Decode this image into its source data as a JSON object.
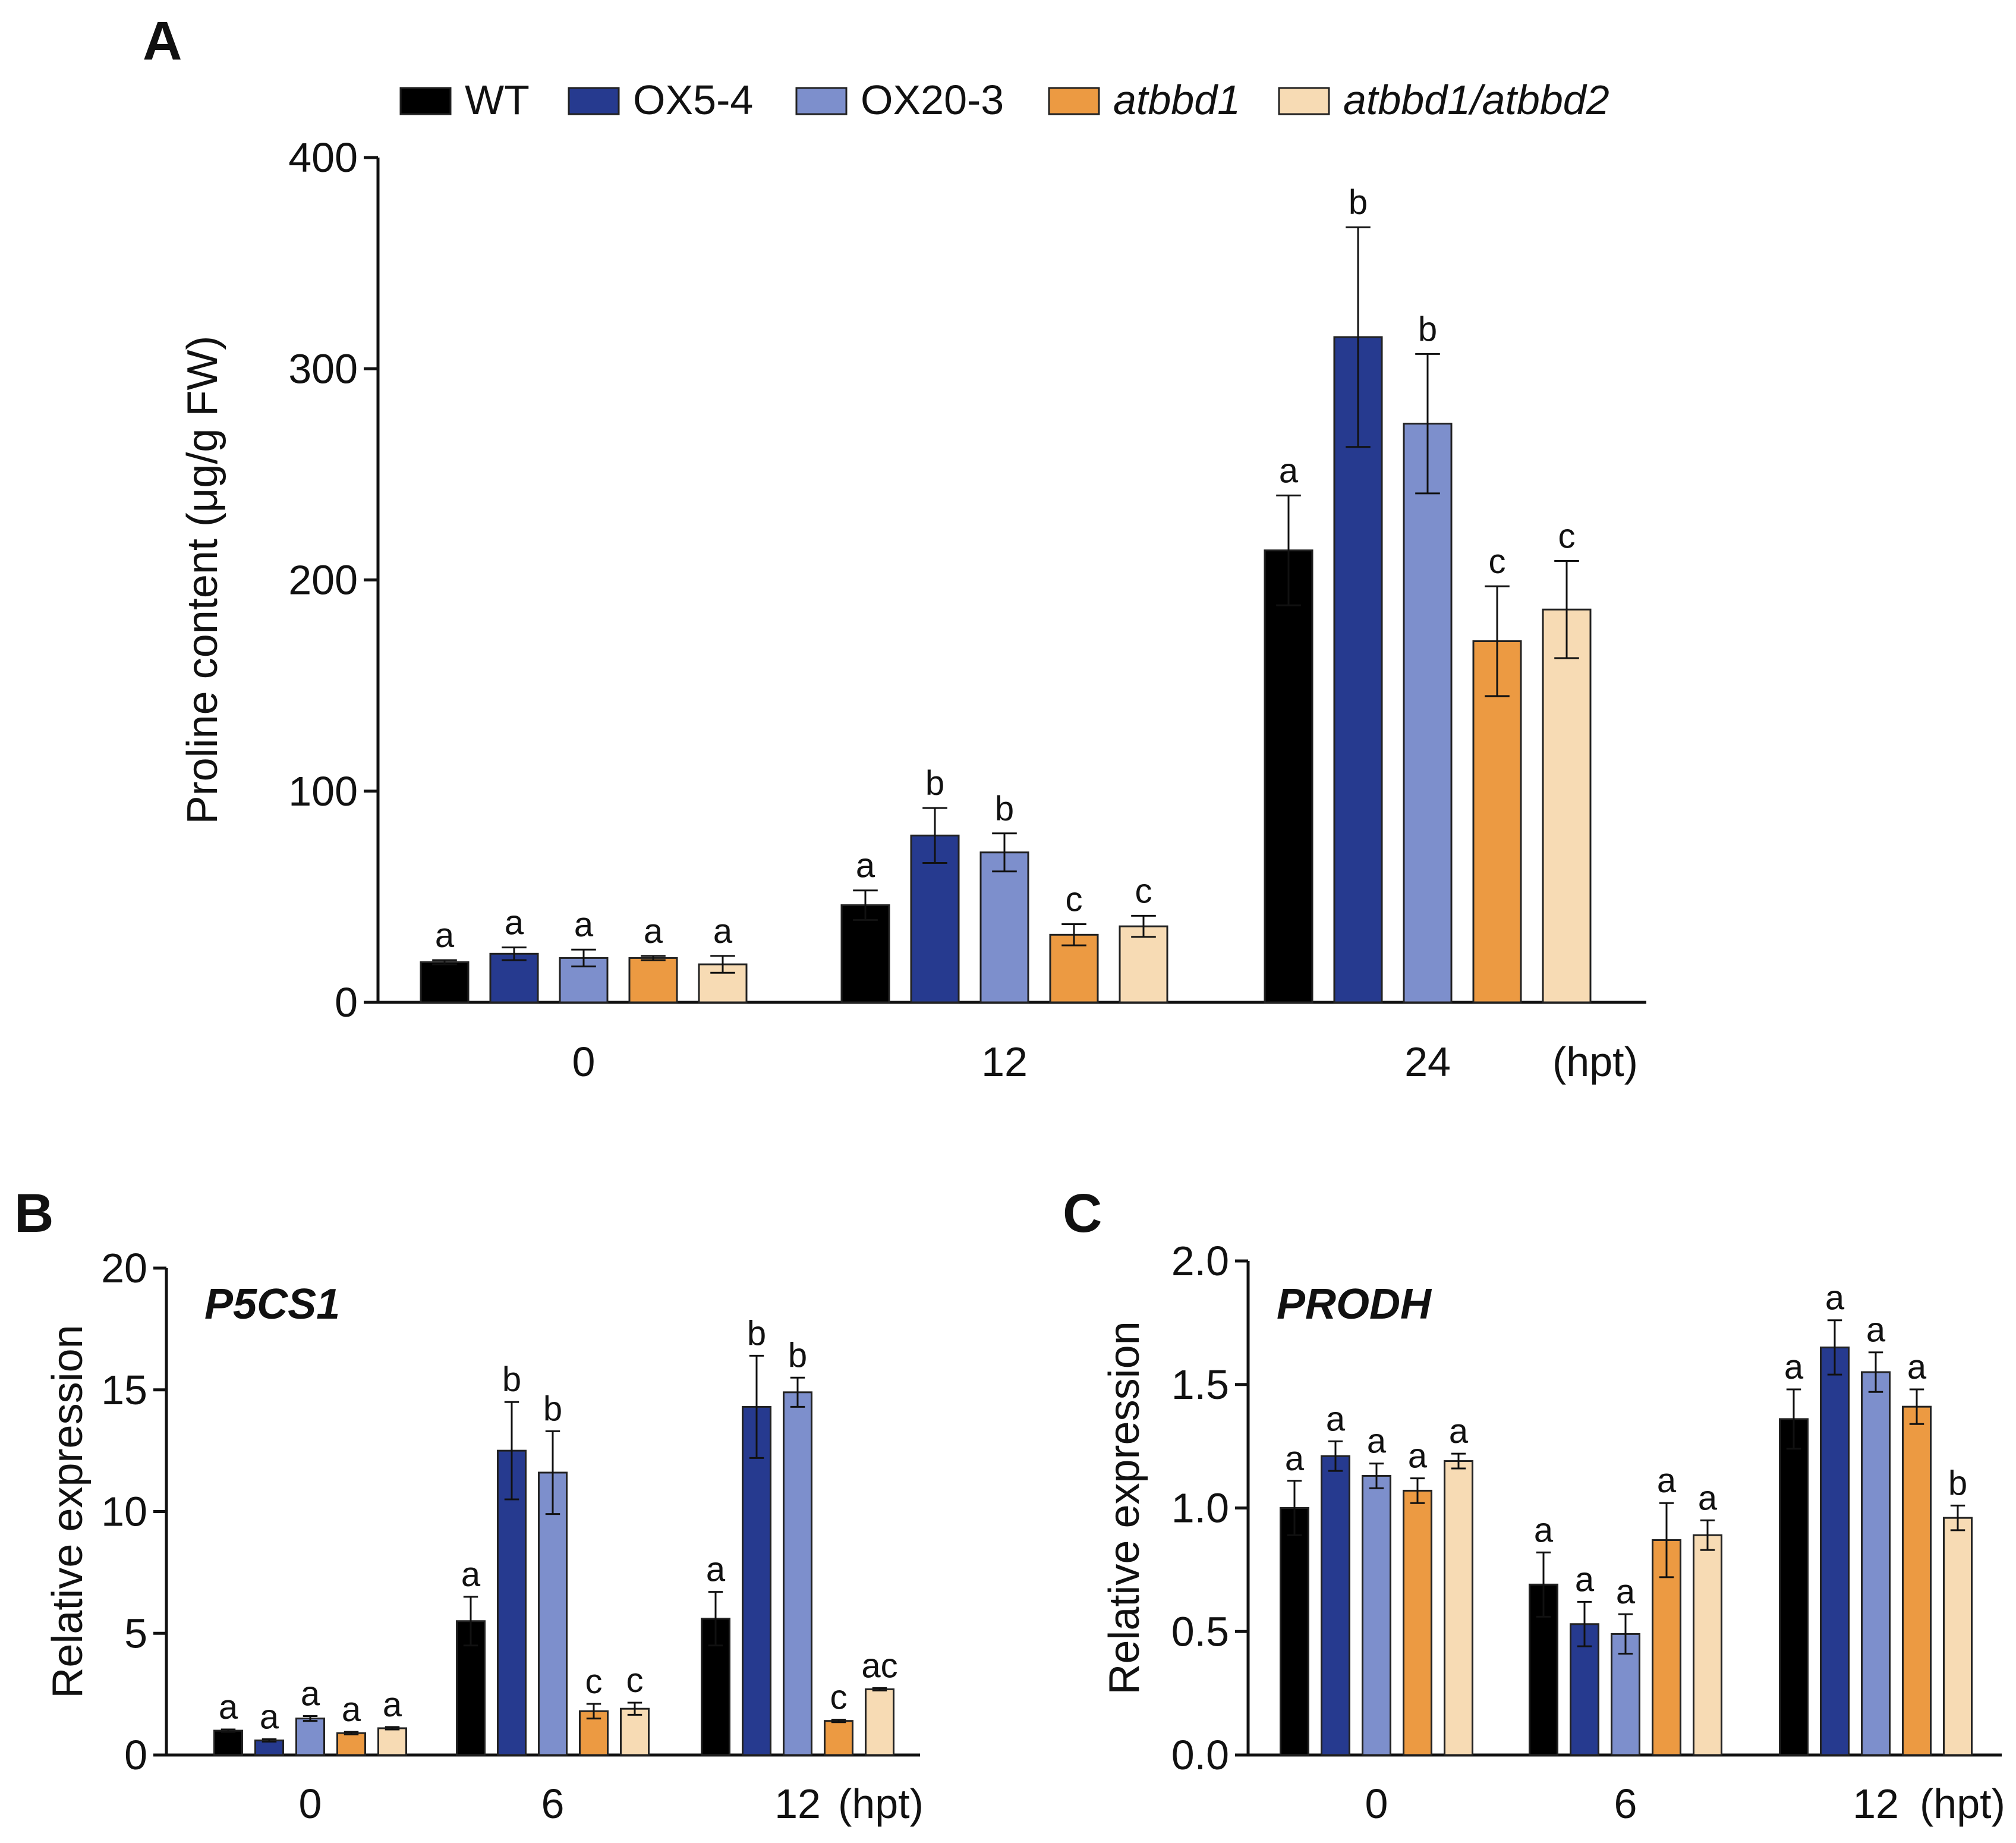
{
  "series_meta": [
    {
      "name": "WT",
      "italic": false,
      "color": "#000000"
    },
    {
      "name": "OX5-4",
      "italic": false,
      "color": "#263a8f"
    },
    {
      "name": "OX20-3",
      "italic": false,
      "color": "#7d8fcc"
    },
    {
      "name": "atbbd1",
      "italic": true,
      "color": "#ec9a42"
    },
    {
      "name": "atbbd1/atbbd2",
      "italic": true,
      "color": "#f7dbb4"
    }
  ],
  "chart_data": [
    {
      "panel": "A",
      "type": "bar",
      "gene": "",
      "ylabel": "Proline content (μg/g FW)",
      "xlabel": "",
      "unit_label": "(hpt)",
      "ylim": [
        0,
        400
      ],
      "yticks": [
        "0",
        "100",
        "200",
        "300",
        "400"
      ],
      "categories": [
        "0",
        "12",
        "24"
      ],
      "series": [
        {
          "name": "WT",
          "values": [
            19,
            46,
            214
          ],
          "errors": [
            1,
            7,
            26
          ],
          "letters": [
            "a",
            "a",
            "a"
          ]
        },
        {
          "name": "OX5-4",
          "values": [
            23,
            79,
            315
          ],
          "errors": [
            3,
            13,
            52
          ],
          "letters": [
            "a",
            "b",
            "b"
          ]
        },
        {
          "name": "OX20-3",
          "values": [
            21,
            71,
            274
          ],
          "errors": [
            4,
            9,
            33
          ],
          "letters": [
            "a",
            "b",
            "b"
          ]
        },
        {
          "name": "atbbd1",
          "values": [
            21,
            32,
            171
          ],
          "errors": [
            1,
            5,
            26
          ],
          "letters": [
            "a",
            "c",
            "c"
          ]
        },
        {
          "name": "atbbd1/atbbd2",
          "values": [
            18,
            36,
            186
          ],
          "errors": [
            4,
            5,
            23
          ],
          "letters": [
            "a",
            "c",
            "c"
          ]
        }
      ]
    },
    {
      "panel": "B",
      "type": "bar",
      "gene": "P5CS1",
      "ylabel": "Relative expression",
      "xlabel": "",
      "unit_label": "(hpt)",
      "ylim": [
        0,
        20
      ],
      "yticks": [
        "0",
        "5",
        "10",
        "15",
        "20"
      ],
      "categories": [
        "0",
        "6",
        "12"
      ],
      "series": [
        {
          "name": "WT",
          "values": [
            1.0,
            5.5,
            5.6
          ],
          "errors": [
            0.05,
            1.0,
            1.1
          ],
          "letters": [
            "a",
            "a",
            "a"
          ]
        },
        {
          "name": "OX5-4",
          "values": [
            0.6,
            12.5,
            14.3
          ],
          "errors": [
            0.05,
            2.0,
            2.1
          ],
          "letters": [
            "a",
            "b",
            "b"
          ]
        },
        {
          "name": "OX20-3",
          "values": [
            1.5,
            11.6,
            14.9
          ],
          "errors": [
            0.1,
            1.7,
            0.6
          ],
          "letters": [
            "a",
            "b",
            "b"
          ]
        },
        {
          "name": "atbbd1",
          "values": [
            0.9,
            1.8,
            1.4
          ],
          "errors": [
            0.05,
            0.3,
            0.05
          ],
          "letters": [
            "a",
            "c",
            "c"
          ]
        },
        {
          "name": "atbbd1/atbbd2",
          "values": [
            1.1,
            1.9,
            2.7
          ],
          "errors": [
            0.05,
            0.25,
            0.05
          ],
          "letters": [
            "a",
            "c",
            "ac"
          ]
        }
      ]
    },
    {
      "panel": "C",
      "type": "bar",
      "gene": "PRODH",
      "ylabel": "Relative expression",
      "xlabel": "",
      "unit_label": "(hpt)",
      "ylim": [
        0,
        2.0
      ],
      "yticks": [
        "0.0",
        "0.5",
        "1.0",
        "1.5",
        "2.0"
      ],
      "categories": [
        "0",
        "6",
        "12"
      ],
      "series": [
        {
          "name": "WT",
          "values": [
            1.0,
            0.69,
            1.36
          ],
          "errors": [
            0.11,
            0.13,
            0.12
          ],
          "letters": [
            "a",
            "a",
            "a"
          ]
        },
        {
          "name": "OX5-4",
          "values": [
            1.21,
            0.53,
            1.65
          ],
          "errors": [
            0.06,
            0.09,
            0.11
          ],
          "letters": [
            "a",
            "a",
            "a"
          ]
        },
        {
          "name": "OX20-3",
          "values": [
            1.13,
            0.49,
            1.55
          ],
          "errors": [
            0.05,
            0.08,
            0.08
          ],
          "letters": [
            "a",
            "a",
            "a"
          ]
        },
        {
          "name": "atbbd1",
          "values": [
            1.07,
            0.87,
            1.41
          ],
          "errors": [
            0.05,
            0.15,
            0.07
          ],
          "letters": [
            "a",
            "a",
            "a"
          ]
        },
        {
          "name": "atbbd1/atbbd2",
          "values": [
            1.19,
            0.89,
            0.96
          ],
          "errors": [
            0.03,
            0.06,
            0.05
          ],
          "letters": [
            "a",
            "a",
            "b"
          ]
        }
      ]
    }
  ]
}
